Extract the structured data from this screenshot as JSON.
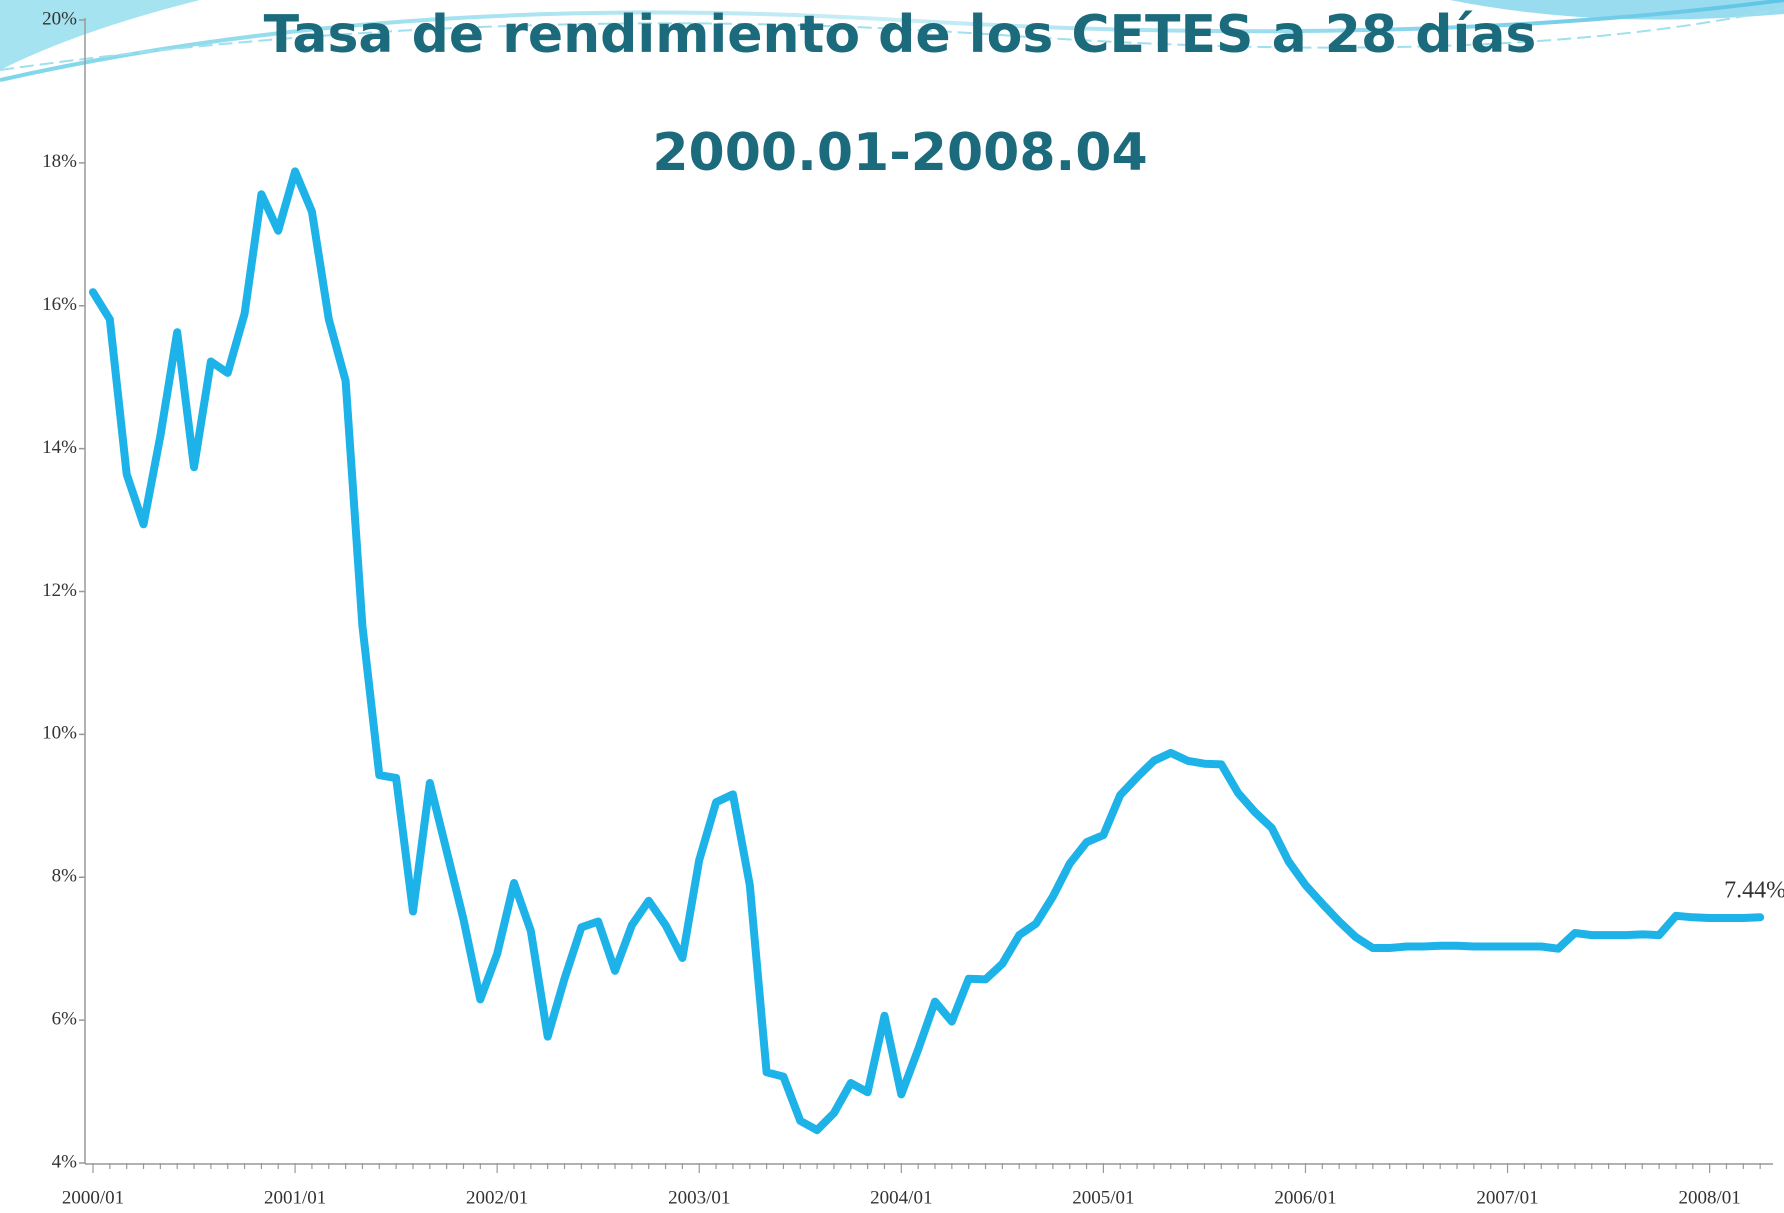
{
  "chart_data": {
    "type": "line",
    "title": "Tasa de rendimiento de los CETES a 28 días",
    "subtitle": "2000.01-2008.04",
    "categories": [
      "2000/01",
      null,
      null,
      null,
      null,
      null,
      null,
      null,
      null,
      null,
      null,
      null,
      "2001/01",
      null,
      null,
      null,
      null,
      null,
      null,
      null,
      null,
      null,
      null,
      null,
      "2002/01",
      null,
      null,
      null,
      null,
      null,
      null,
      null,
      null,
      null,
      null,
      null,
      "2003/01",
      null,
      null,
      null,
      null,
      null,
      null,
      null,
      null,
      null,
      null,
      null,
      "2004/01",
      null,
      null,
      null,
      null,
      null,
      null,
      null,
      null,
      null,
      null,
      null,
      "2005/01",
      null,
      null,
      null,
      null,
      null,
      null,
      null,
      null,
      null,
      null,
      null,
      "2006/01",
      null,
      null,
      null,
      null,
      null,
      null,
      null,
      null,
      null,
      null,
      null,
      "2007/01",
      null,
      null,
      null,
      null,
      null,
      null,
      null,
      null,
      null,
      null,
      null,
      "2008/01",
      null,
      null,
      null
    ],
    "values": [
      16.19,
      15.81,
      13.64,
      12.94,
      14.18,
      15.63,
      13.74,
      15.22,
      15.06,
      15.89,
      17.56,
      17.05,
      17.88,
      17.32,
      15.81,
      14.95,
      11.52,
      9.43,
      9.39,
      7.52,
      9.32,
      8.37,
      7.41,
      6.29,
      6.93,
      7.92,
      7.25,
      5.77,
      6.58,
      7.3,
      7.38,
      6.69,
      7.33,
      7.67,
      7.33,
      6.87,
      8.24,
      9.05,
      9.16,
      7.89,
      5.27,
      5.21,
      4.59,
      4.46,
      4.7,
      5.12,
      4.99,
      6.06,
      4.96,
      5.59,
      6.26,
      5.98,
      6.58,
      6.57,
      6.79,
      7.19,
      7.35,
      7.73,
      8.19,
      8.49,
      8.59,
      9.15,
      9.4,
      9.63,
      9.74,
      9.63,
      9.59,
      9.58,
      9.18,
      8.91,
      8.69,
      8.22,
      7.89,
      7.63,
      7.38,
      7.16,
      7.01,
      7.01,
      7.03,
      7.03,
      7.04,
      7.04,
      7.03,
      7.03,
      7.03,
      7.03,
      7.03,
      7.0,
      7.22,
      7.19,
      7.19,
      7.19,
      7.2,
      7.19,
      7.46,
      7.44,
      7.43,
      7.43,
      7.43,
      7.44
    ],
    "value_labels": [
      null,
      null,
      null,
      null,
      null,
      null,
      null,
      null,
      null,
      null,
      null,
      null,
      null,
      null,
      null,
      null,
      null,
      null,
      null,
      null,
      null,
      null,
      null,
      null,
      null,
      null,
      null,
      null,
      null,
      null,
      null,
      null,
      null,
      null,
      null,
      null,
      null,
      null,
      null,
      null,
      null,
      null,
      null,
      null,
      null,
      null,
      null,
      null,
      null,
      null,
      null,
      null,
      null,
      null,
      null,
      null,
      null,
      null,
      null,
      null,
      null,
      null,
      null,
      null,
      null,
      null,
      null,
      null,
      null,
      null,
      null,
      null,
      null,
      null,
      null,
      null,
      null,
      null,
      null,
      null,
      null,
      null,
      null,
      null,
      null,
      null,
      null,
      null,
      null,
      null,
      null,
      null,
      null,
      null,
      null,
      null,
      null,
      null,
      null,
      "7.44%"
    ],
    "color": "#1db3e9",
    "ylim": [
      4,
      20
    ],
    "yticks": [
      {
        "value": 4,
        "label": "4%"
      },
      {
        "value": 6,
        "label": "6%"
      },
      {
        "value": 8,
        "label": "8%"
      },
      {
        "value": 10,
        "label": "10%"
      },
      {
        "value": 12,
        "label": "12%"
      },
      {
        "value": 14,
        "label": "14%"
      },
      {
        "value": 16,
        "label": "16%"
      },
      {
        "value": 18,
        "label": "18%"
      },
      {
        "value": 20,
        "label": "20%"
      }
    ],
    "grid": false
  }
}
